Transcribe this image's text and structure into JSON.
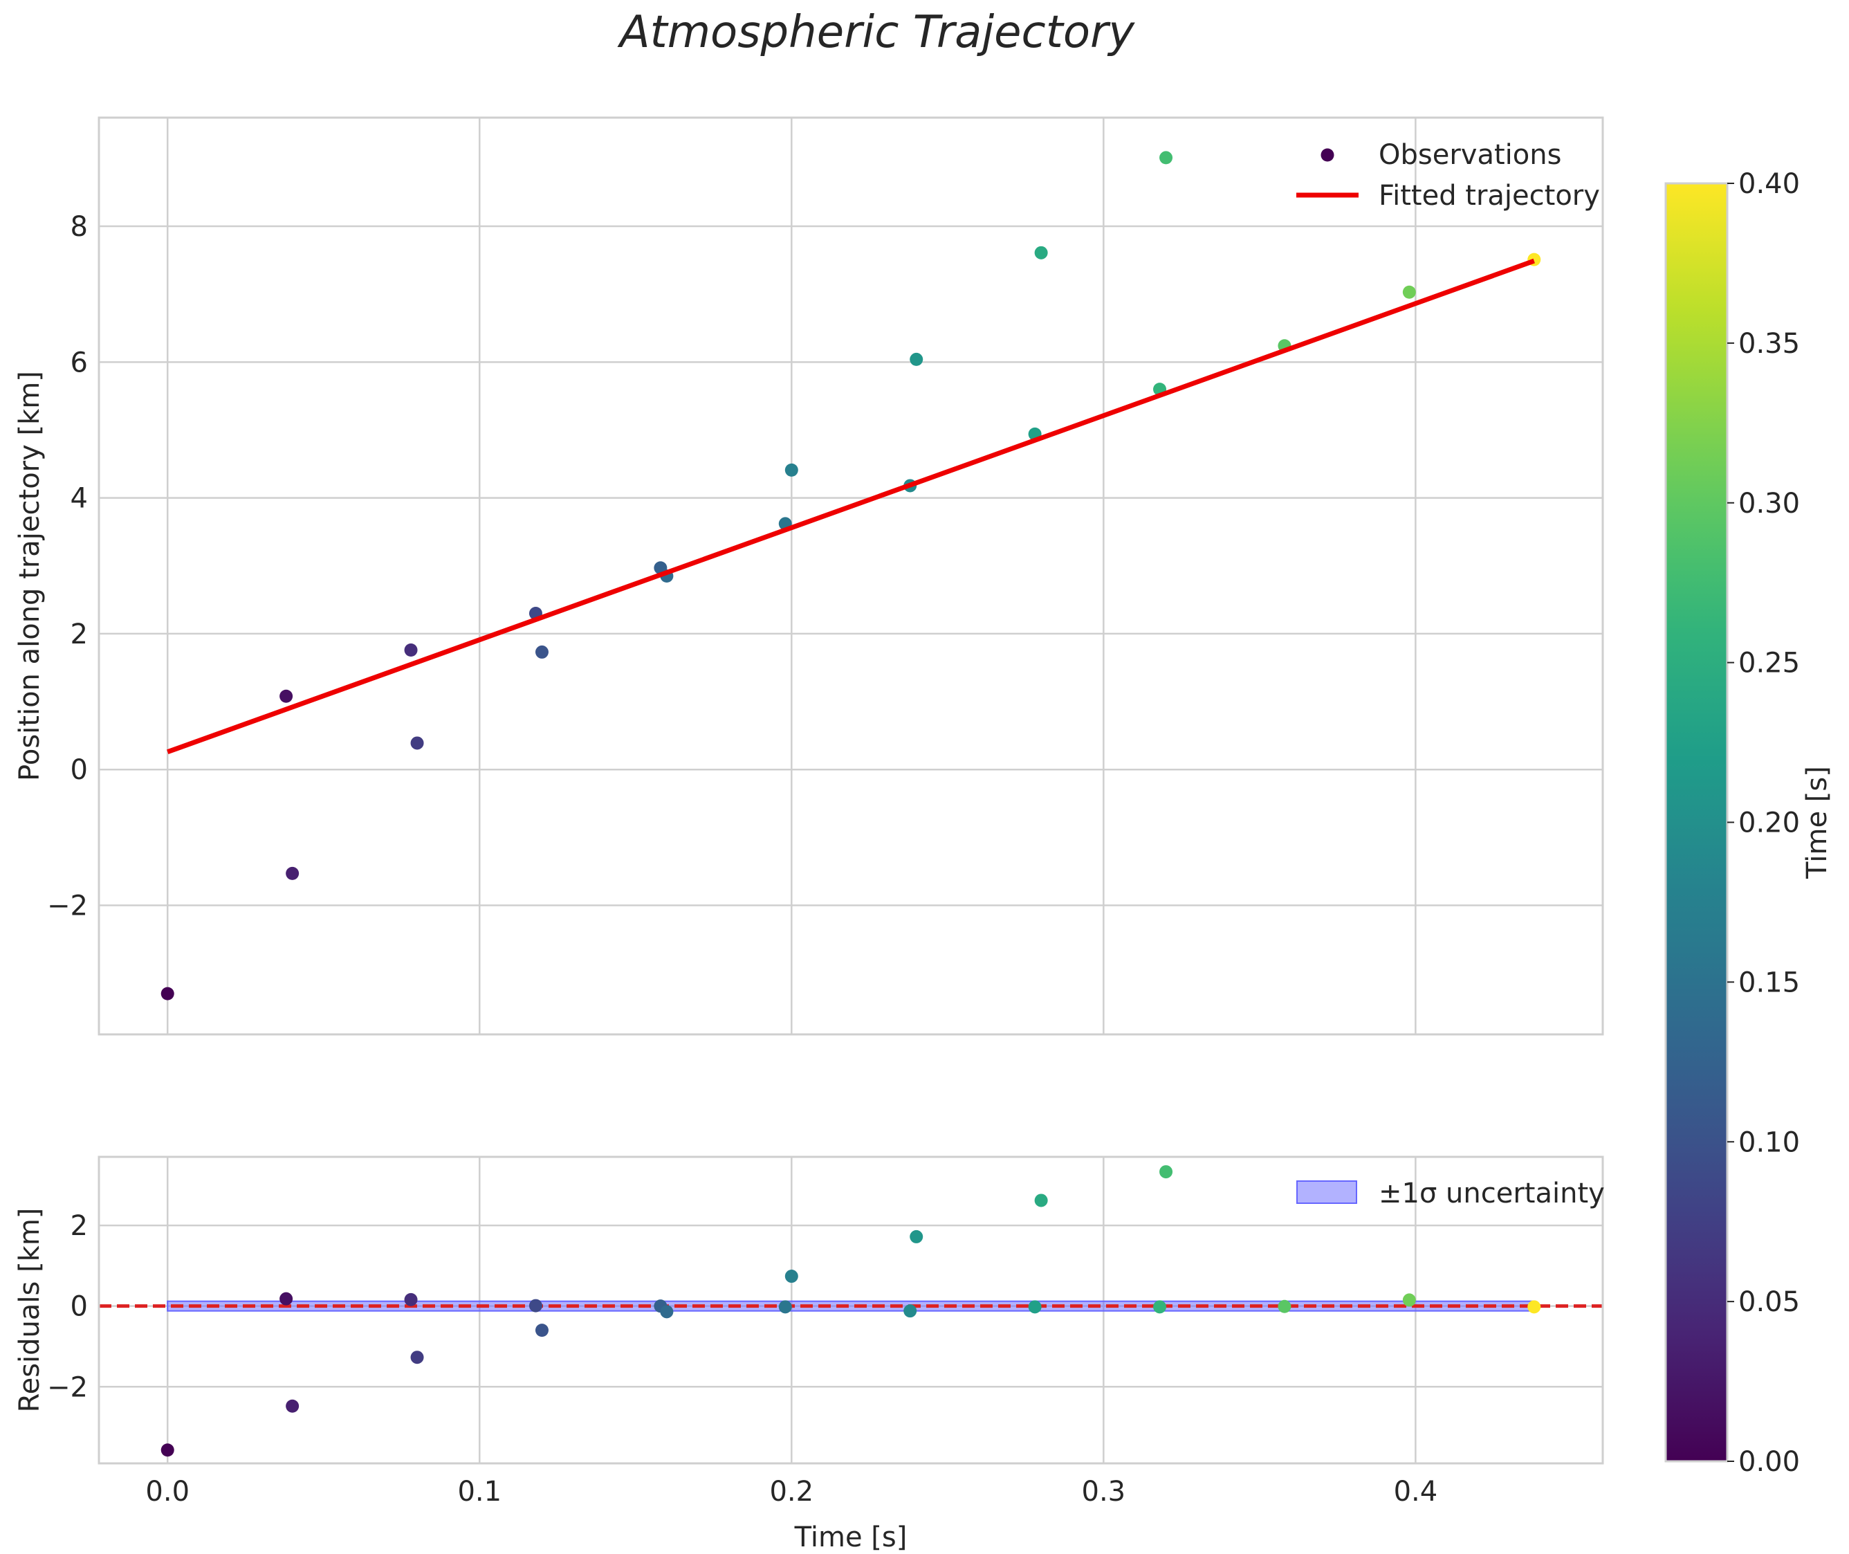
{
  "figure_title": "Atmospheric Trajectory",
  "chart_data": [
    {
      "type": "scatter",
      "panel": "main",
      "title": "Atmospheric Trajectory",
      "xlabel": "",
      "ylabel": "Position along trajectory [km]",
      "xlim": [
        -0.022,
        0.46
      ],
      "ylim": [
        -3.9,
        9.6
      ],
      "xticks": [
        0.0,
        0.1,
        0.2,
        0.3,
        0.4
      ],
      "yticks": [
        -2,
        0,
        2,
        4,
        6,
        8
      ],
      "xtick_labels": [
        "",
        "",
        "",
        "",
        ""
      ],
      "ytick_labels": [
        "−2",
        "0",
        "2",
        "4",
        "6",
        "8"
      ],
      "grid": true,
      "legend_position": "top-right",
      "series": [
        {
          "name": "Observations",
          "kind": "scatter",
          "colormap": "viridis",
          "points": [
            {
              "x": 0.0,
              "y": -3.3,
              "c": 0.0
            },
            {
              "x": 0.038,
              "y": 1.08,
              "c": 0.017
            },
            {
              "x": 0.04,
              "y": -1.53,
              "c": 0.035
            },
            {
              "x": 0.078,
              "y": 1.76,
              "c": 0.052
            },
            {
              "x": 0.08,
              "y": 0.39,
              "c": 0.07
            },
            {
              "x": 0.118,
              "y": 2.3,
              "c": 0.087
            },
            {
              "x": 0.12,
              "y": 1.73,
              "c": 0.104
            },
            {
              "x": 0.158,
              "y": 2.97,
              "c": 0.122
            },
            {
              "x": 0.16,
              "y": 2.85,
              "c": 0.139
            },
            {
              "x": 0.198,
              "y": 3.62,
              "c": 0.157
            },
            {
              "x": 0.2,
              "y": 4.41,
              "c": 0.174
            },
            {
              "x": 0.238,
              "y": 4.18,
              "c": 0.191
            },
            {
              "x": 0.24,
              "y": 6.04,
              "c": 0.209
            },
            {
              "x": 0.278,
              "y": 4.94,
              "c": 0.226
            },
            {
              "x": 0.28,
              "y": 7.61,
              "c": 0.243
            },
            {
              "x": 0.318,
              "y": 5.6,
              "c": 0.261
            },
            {
              "x": 0.32,
              "y": 9.01,
              "c": 0.278
            },
            {
              "x": 0.358,
              "y": 6.24,
              "c": 0.296
            },
            {
              "x": 0.398,
              "y": 7.03,
              "c": 0.313
            },
            {
              "x": 0.438,
              "y": 7.51,
              "c": 0.4
            }
          ]
        },
        {
          "name": "Fitted trajectory",
          "kind": "line",
          "color": "#ee0000",
          "x": [
            0.0,
            0.438
          ],
          "y": [
            0.26,
            7.49
          ]
        }
      ]
    },
    {
      "type": "scatter",
      "panel": "residuals",
      "title": "",
      "xlabel": "Time [s]",
      "ylabel": "Residuals [km]",
      "xlim": [
        -0.022,
        0.46
      ],
      "ylim": [
        -3.9,
        3.7
      ],
      "xticks": [
        0.0,
        0.1,
        0.2,
        0.3,
        0.4
      ],
      "yticks": [
        -2,
        0,
        2
      ],
      "xtick_labels": [
        "0.0",
        "0.1",
        "0.2",
        "0.3",
        "0.4"
      ],
      "ytick_labels": [
        "−2",
        "0",
        "2"
      ],
      "grid": true,
      "legend_position": "top-right",
      "zero_line_color": "#dd2222",
      "band": {
        "name": "±1σ uncertainty",
        "x": [
          0.0,
          0.438
        ],
        "lower": -0.12,
        "upper": 0.12,
        "color": "#6666ff"
      },
      "series": [
        {
          "name": "Residuals",
          "kind": "scatter",
          "colormap": "viridis",
          "points": [
            {
              "x": 0.0,
              "y": -3.57,
              "c": 0.0
            },
            {
              "x": 0.038,
              "y": 0.18,
              "c": 0.017
            },
            {
              "x": 0.04,
              "y": -2.48,
              "c": 0.035
            },
            {
              "x": 0.078,
              "y": 0.16,
              "c": 0.052
            },
            {
              "x": 0.08,
              "y": -1.27,
              "c": 0.07
            },
            {
              "x": 0.118,
              "y": 0.01,
              "c": 0.087
            },
            {
              "x": 0.12,
              "y": -0.6,
              "c": 0.104
            },
            {
              "x": 0.158,
              "y": 0.0,
              "c": 0.122
            },
            {
              "x": 0.16,
              "y": -0.14,
              "c": 0.139
            },
            {
              "x": 0.198,
              "y": -0.02,
              "c": 0.157
            },
            {
              "x": 0.2,
              "y": 0.74,
              "c": 0.174
            },
            {
              "x": 0.238,
              "y": -0.12,
              "c": 0.191
            },
            {
              "x": 0.24,
              "y": 1.72,
              "c": 0.209
            },
            {
              "x": 0.278,
              "y": -0.02,
              "c": 0.226
            },
            {
              "x": 0.28,
              "y": 2.62,
              "c": 0.243
            },
            {
              "x": 0.318,
              "y": -0.02,
              "c": 0.261
            },
            {
              "x": 0.32,
              "y": 3.33,
              "c": 0.278
            },
            {
              "x": 0.358,
              "y": -0.01,
              "c": 0.296
            },
            {
              "x": 0.398,
              "y": 0.15,
              "c": 0.313
            },
            {
              "x": 0.438,
              "y": -0.02,
              "c": 0.4
            }
          ]
        }
      ]
    },
    {
      "type": "colorbar",
      "label": "Time [s]",
      "colormap": "viridis",
      "range": [
        0.0,
        0.4
      ],
      "ticks": [
        0.0,
        0.05,
        0.1,
        0.15,
        0.2,
        0.25,
        0.3,
        0.35,
        0.4
      ],
      "tick_labels": [
        "0.00",
        "0.05",
        "0.10",
        "0.15",
        "0.20",
        "0.25",
        "0.30",
        "0.35",
        "0.40"
      ]
    }
  ],
  "legends": {
    "main": [
      {
        "label": "Observations",
        "kind": "marker",
        "color": "#440154"
      },
      {
        "label": "Fitted trajectory",
        "kind": "line",
        "color": "#ee0000"
      }
    ],
    "residuals": [
      {
        "label": "±1σ uncertainty",
        "kind": "patch",
        "color": "#6666ff"
      }
    ]
  }
}
